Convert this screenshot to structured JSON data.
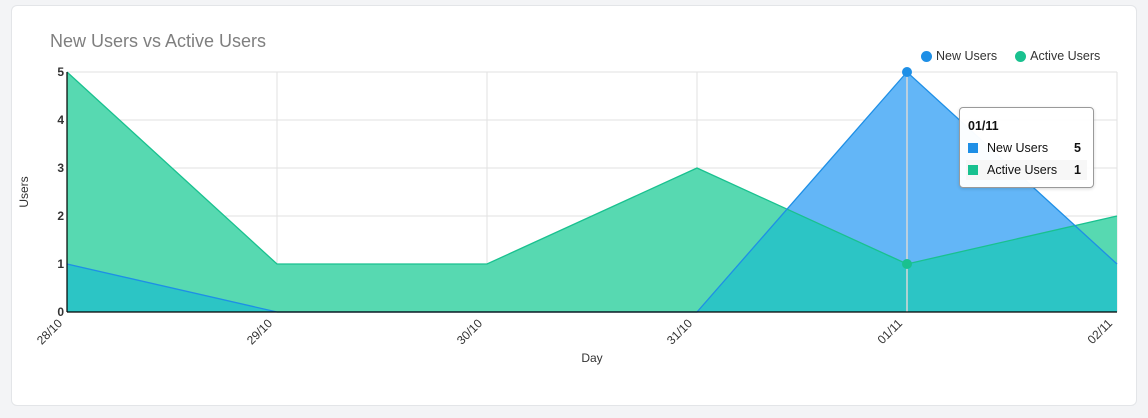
{
  "chart_data": {
    "type": "area",
    "title": "New Users vs Active Users",
    "xlabel": "Day",
    "ylabel": "Users",
    "categories": [
      "28/10",
      "29/10",
      "30/10",
      "31/10",
      "01/11",
      "02/11"
    ],
    "ylim": [
      0,
      5
    ],
    "yticks": [
      0,
      1,
      2,
      3,
      4,
      5
    ],
    "grid": true,
    "legend_position": "top-right",
    "series": [
      {
        "name": "New Users",
        "values": [
          1,
          0,
          0,
          0,
          5,
          1
        ],
        "color": "#1e8fe6",
        "fill": "#63b6f7"
      },
      {
        "name": "Active Users",
        "values": [
          5,
          1,
          1,
          3,
          1,
          2
        ],
        "color": "#19c18f",
        "fill": "#57d9b1"
      }
    ],
    "overlap_fill": "#2cc5c5",
    "tooltip": {
      "title": "01/11",
      "rows": [
        {
          "name": "New Users",
          "value": "5"
        },
        {
          "name": "Active Users",
          "value": "1"
        }
      ]
    }
  }
}
